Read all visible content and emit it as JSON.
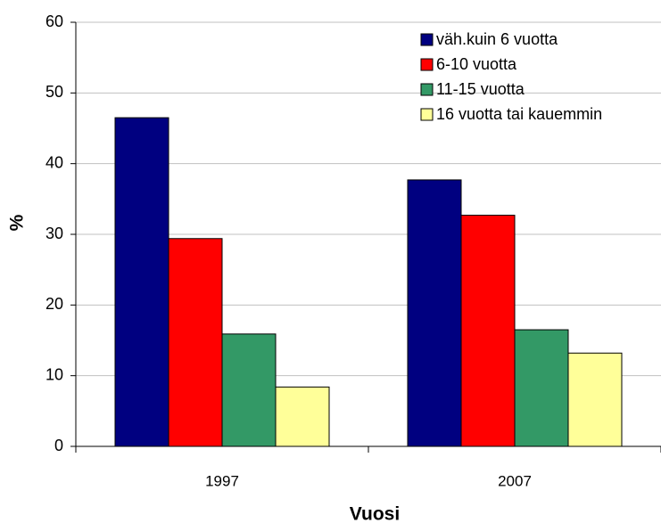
{
  "chart_data": {
    "type": "bar",
    "categories": [
      "1997",
      "2007"
    ],
    "series": [
      {
        "name": "väh.kuin 6 vuotta",
        "color": "#000080",
        "values": [
          46.5,
          37.7
        ]
      },
      {
        "name": "6-10 vuotta",
        "color": "#ff0000",
        "values": [
          29.4,
          32.7
        ]
      },
      {
        "name": "11-15 vuotta",
        "color": "#339966",
        "values": [
          15.9,
          16.5
        ]
      },
      {
        "name": "16 vuotta tai kauemmin",
        "color": "#ffff99",
        "values": [
          8.4,
          13.2
        ]
      }
    ],
    "xlabel": "Vuosi",
    "ylabel": "%",
    "ylim": [
      0,
      60
    ],
    "yticks": [
      0,
      10,
      20,
      30,
      40,
      50,
      60
    ],
    "grid": true,
    "legend": "upper right"
  }
}
